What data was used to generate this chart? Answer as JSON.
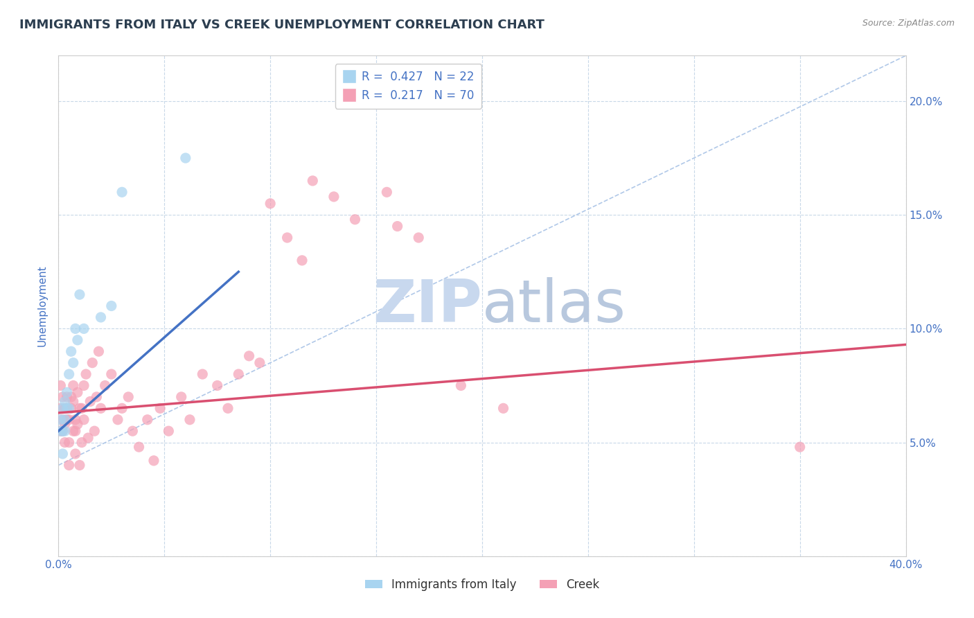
{
  "title": "IMMIGRANTS FROM ITALY VS CREEK UNEMPLOYMENT CORRELATION CHART",
  "source_text": "Source: ZipAtlas.com",
  "ylabel": "Unemployment",
  "xlim": [
    0.0,
    0.4
  ],
  "ylim": [
    0.0,
    0.22
  ],
  "x_ticks": [
    0.0,
    0.05,
    0.1,
    0.15,
    0.2,
    0.25,
    0.3,
    0.35,
    0.4
  ],
  "y_ticks": [
    0.0,
    0.05,
    0.1,
    0.15,
    0.2
  ],
  "italy_color": "#a8d4f0",
  "creek_color": "#f4a0b5",
  "italy_R": 0.427,
  "italy_N": 22,
  "creek_R": 0.217,
  "creek_N": 70,
  "italy_scatter_x": [
    0.001,
    0.001,
    0.002,
    0.002,
    0.002,
    0.003,
    0.003,
    0.003,
    0.004,
    0.004,
    0.005,
    0.005,
    0.006,
    0.007,
    0.008,
    0.009,
    0.01,
    0.012,
    0.02,
    0.025,
    0.03,
    0.06
  ],
  "italy_scatter_y": [
    0.06,
    0.055,
    0.065,
    0.055,
    0.045,
    0.068,
    0.06,
    0.055,
    0.072,
    0.065,
    0.08,
    0.065,
    0.09,
    0.085,
    0.1,
    0.095,
    0.115,
    0.1,
    0.105,
    0.11,
    0.16,
    0.175
  ],
  "creek_scatter_x": [
    0.001,
    0.001,
    0.001,
    0.002,
    0.002,
    0.002,
    0.003,
    0.003,
    0.003,
    0.004,
    0.004,
    0.004,
    0.005,
    0.005,
    0.005,
    0.006,
    0.006,
    0.007,
    0.007,
    0.007,
    0.008,
    0.008,
    0.008,
    0.009,
    0.009,
    0.01,
    0.01,
    0.011,
    0.011,
    0.012,
    0.012,
    0.013,
    0.014,
    0.015,
    0.016,
    0.017,
    0.018,
    0.019,
    0.02,
    0.022,
    0.025,
    0.028,
    0.03,
    0.033,
    0.035,
    0.038,
    0.042,
    0.045,
    0.048,
    0.052,
    0.058,
    0.062,
    0.068,
    0.075,
    0.08,
    0.085,
    0.09,
    0.095,
    0.1,
    0.108,
    0.115,
    0.12,
    0.13,
    0.14,
    0.155,
    0.16,
    0.17,
    0.19,
    0.21,
    0.35
  ],
  "creek_scatter_y": [
    0.065,
    0.075,
    0.055,
    0.07,
    0.06,
    0.055,
    0.065,
    0.058,
    0.05,
    0.065,
    0.06,
    0.07,
    0.06,
    0.05,
    0.04,
    0.065,
    0.07,
    0.068,
    0.055,
    0.075,
    0.06,
    0.045,
    0.055,
    0.072,
    0.058,
    0.065,
    0.04,
    0.05,
    0.065,
    0.06,
    0.075,
    0.08,
    0.052,
    0.068,
    0.085,
    0.055,
    0.07,
    0.09,
    0.065,
    0.075,
    0.08,
    0.06,
    0.065,
    0.07,
    0.055,
    0.048,
    0.06,
    0.042,
    0.065,
    0.055,
    0.07,
    0.06,
    0.08,
    0.075,
    0.065,
    0.08,
    0.088,
    0.085,
    0.155,
    0.14,
    0.13,
    0.165,
    0.158,
    0.148,
    0.16,
    0.145,
    0.14,
    0.075,
    0.065,
    0.048
  ],
  "diag_line_color": "#b0c8e8",
  "italy_line_color": "#4472c4",
  "creek_line_color": "#d94f70",
  "watermark_zip_color": "#c8d8ee",
  "watermark_atlas_color": "#b8c8de",
  "title_fontsize": 13,
  "axis_label_fontsize": 11,
  "tick_label_fontsize": 11,
  "legend_fontsize": 12,
  "background_color": "#ffffff",
  "grid_color": "#c8d8e8",
  "title_color": "#2c3e50",
  "axis_label_color": "#4472c4",
  "tick_label_color": "#4472c4"
}
